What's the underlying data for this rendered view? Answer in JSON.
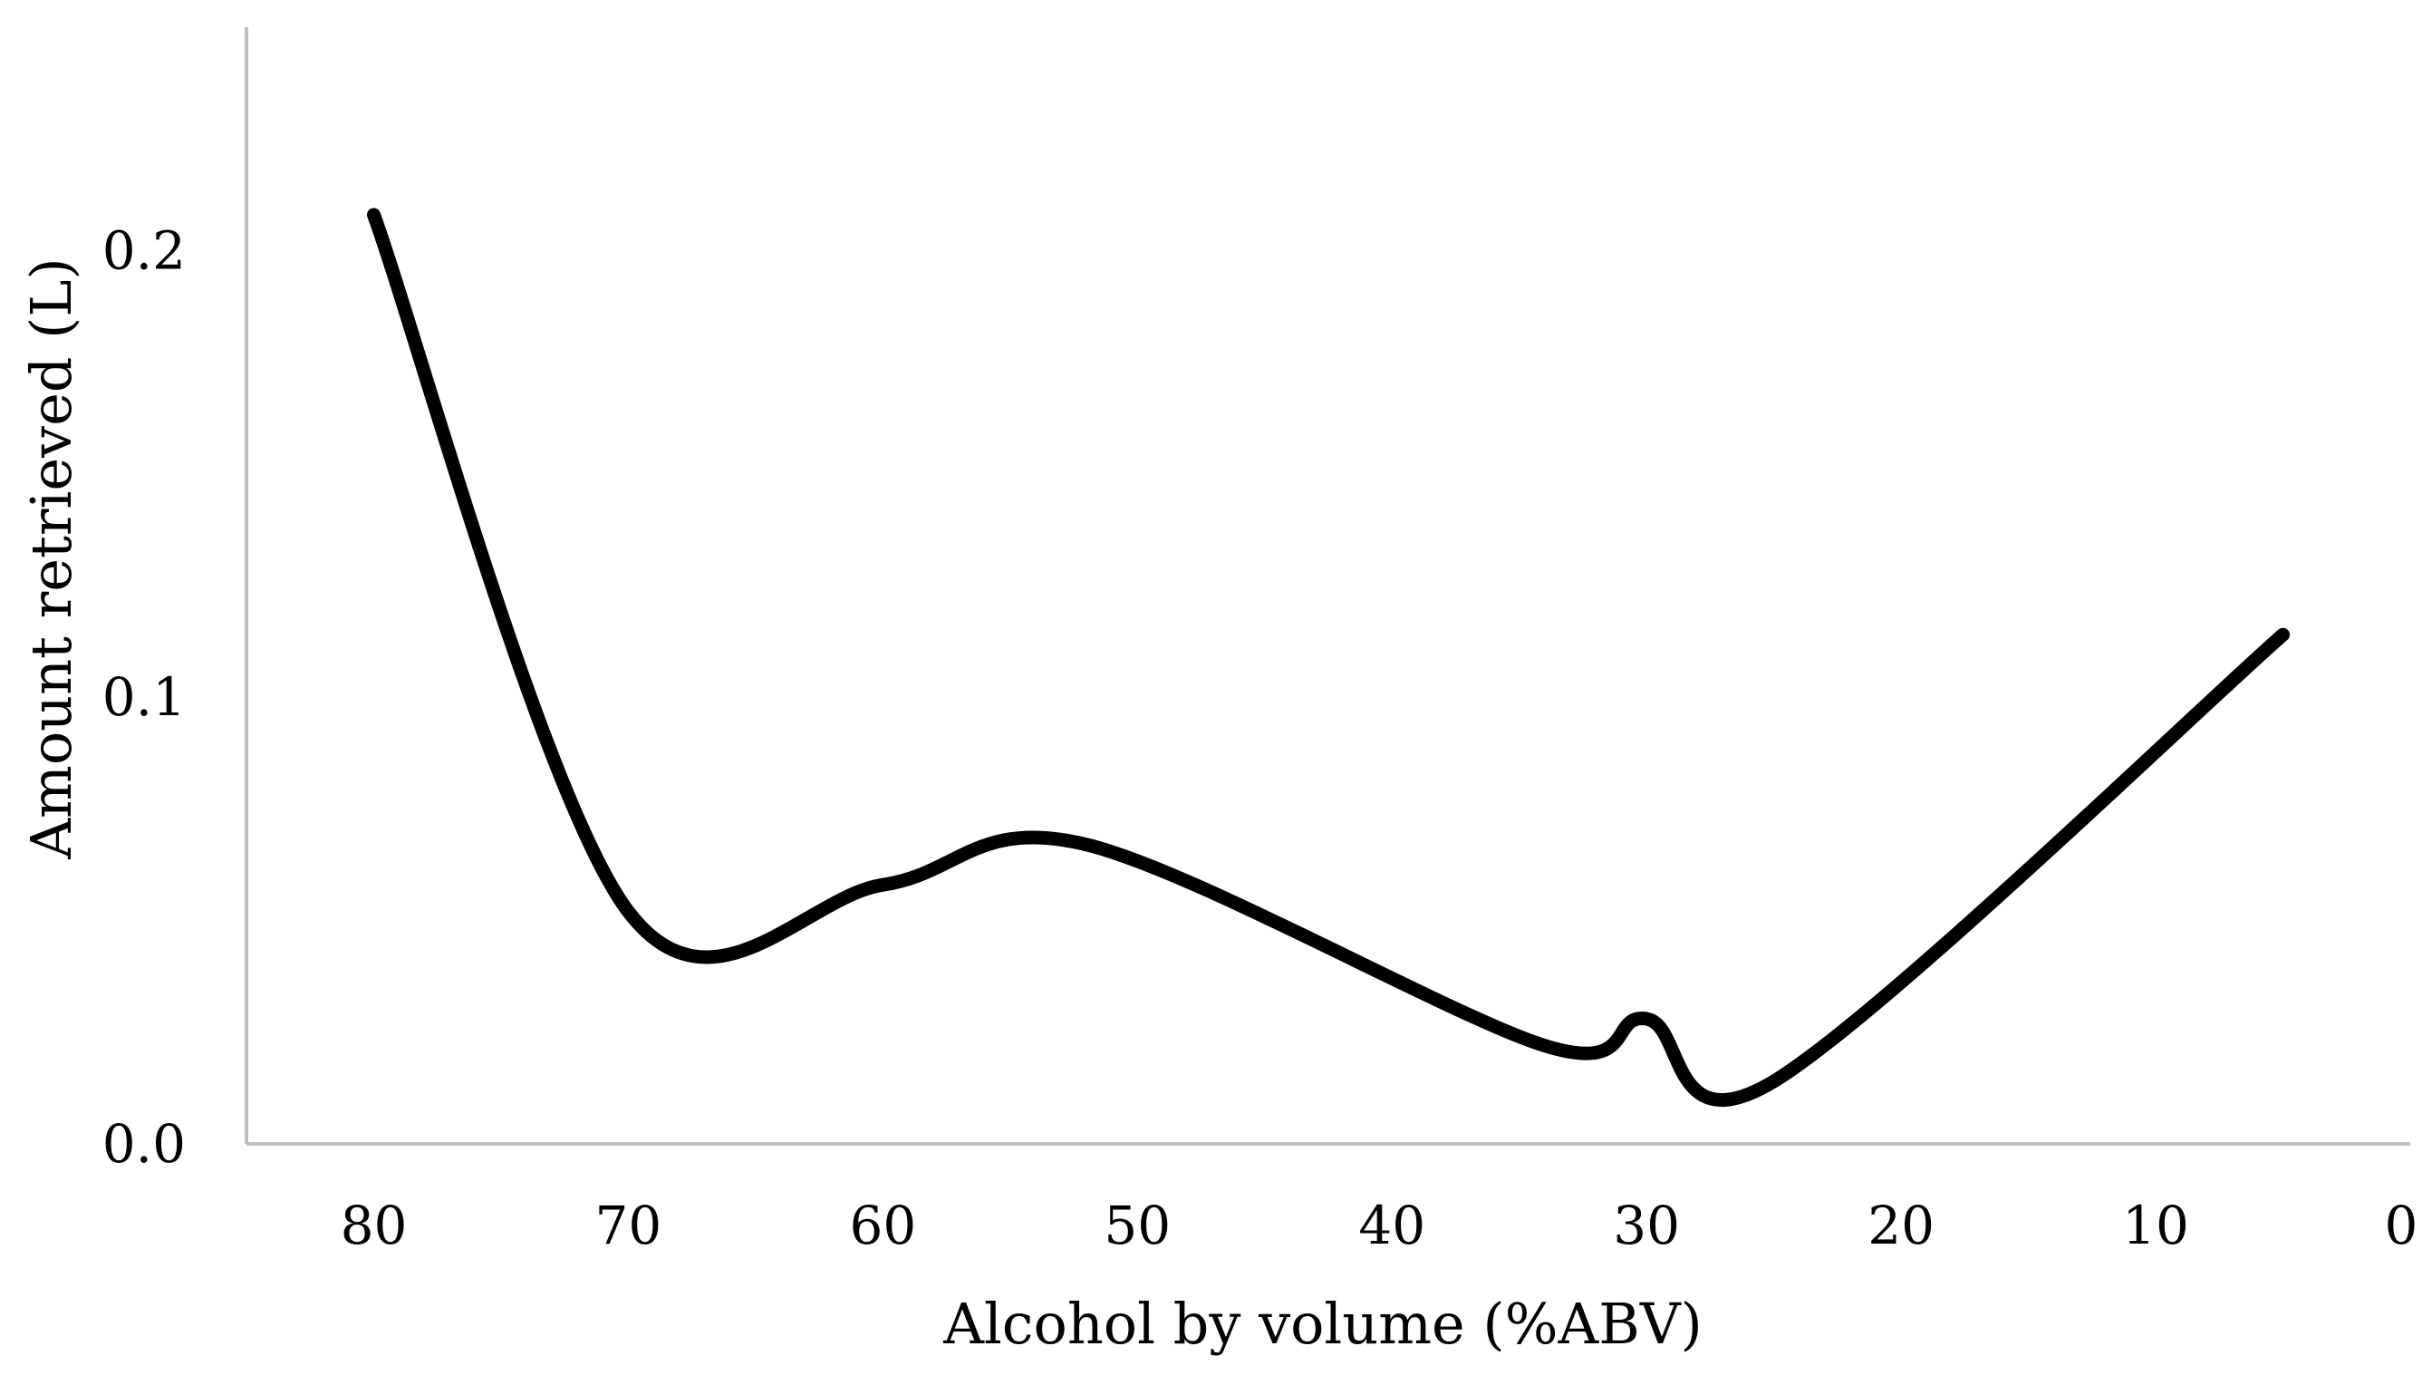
{
  "chart_data": {
    "type": "line",
    "title": "",
    "xlabel": "Alcohol by volume (%ABV)",
    "ylabel": "Amount retrieved (L)",
    "xlim": [
      85,
      0
    ],
    "ylim": [
      0,
      0.25
    ],
    "x_reversed": true,
    "x_ticks": [
      80,
      70,
      60,
      50,
      40,
      30,
      20,
      10,
      0
    ],
    "x_tick_labels": [
      "80",
      "70",
      "60",
      "50",
      "40",
      "30",
      "20",
      "10",
      "0"
    ],
    "y_ticks": [
      0,
      0.1,
      0.2
    ],
    "y_tick_labels": [
      "0.0",
      "0.1",
      "0.2"
    ],
    "grid": false,
    "smooth": true,
    "series": [
      {
        "name": "Amount retrieved",
        "color": "#000000",
        "x": [
          80,
          70,
          60,
          52,
          34,
          30,
          25,
          5
        ],
        "y": [
          0.208,
          0.052,
          0.058,
          0.067,
          0.022,
          0.028,
          0.014,
          0.114
        ]
      }
    ]
  }
}
